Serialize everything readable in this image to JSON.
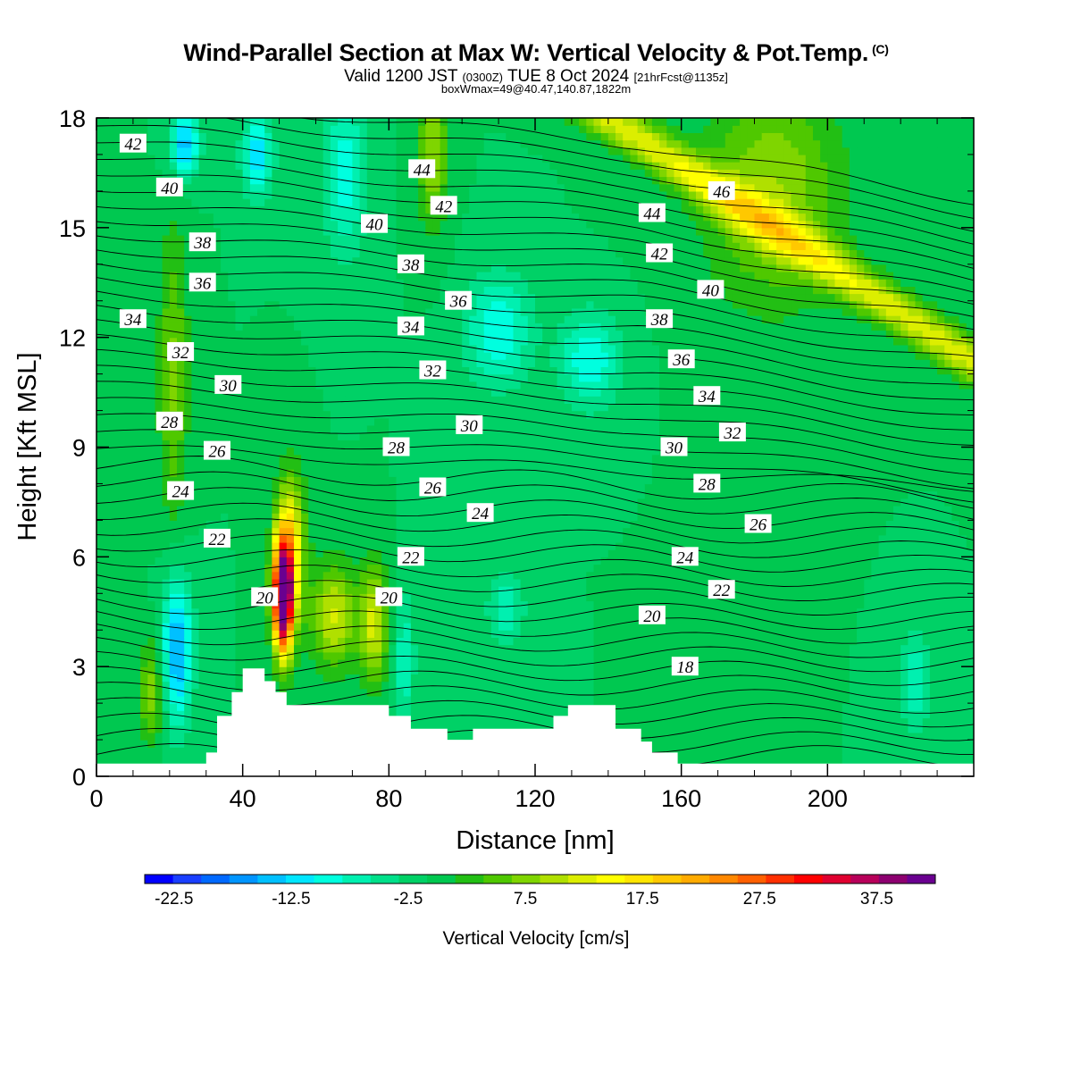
{
  "header": {
    "title": "Wind-Parallel Section at Max W: Vertical Velocity & Pot.Temp.",
    "copyright_mark": "(C)",
    "valid_prefix": "Valid 1200 JST",
    "valid_zulu": "(0300Z)",
    "valid_date": "TUE 8 Oct 2024",
    "forecast_tag": "[21hrFcst@1135z]",
    "box_info": "boxWmax=49@40.47,140.87,1822m"
  },
  "chart_data": {
    "type": "heatmap",
    "xlabel": "Distance [nm]",
    "ylabel": "Height [Kft MSL]",
    "xlim": [
      0,
      240
    ],
    "ylim": [
      0,
      18
    ],
    "x_ticks": [
      0,
      40,
      80,
      120,
      160,
      200
    ],
    "y_ticks": [
      0,
      3,
      6,
      9,
      12,
      15,
      18
    ],
    "colorbar": {
      "label": "Vertical Velocity [cm/s]",
      "tick_labels": [
        "-22.5",
        "-12.5",
        "-2.5",
        "7.5",
        "17.5",
        "27.5",
        "37.5"
      ],
      "tick_values": [
        -22.5,
        -12.5,
        -2.5,
        7.5,
        17.5,
        27.5,
        37.5
      ],
      "min": -25,
      "max": 42.5,
      "step": 2.5,
      "colors": [
        "#0000ff",
        "#1a3fff",
        "#0069ff",
        "#0095ff",
        "#00c0ff",
        "#00e6ff",
        "#00ffdf",
        "#00f0b0",
        "#00e08a",
        "#00d166",
        "#00c850",
        "#22bf14",
        "#4fc800",
        "#7fd500",
        "#b0e000",
        "#dcee00",
        "#ffff00",
        "#ffe500",
        "#ffc800",
        "#ffab00",
        "#ff8800",
        "#ff6000",
        "#ff3000",
        "#ff0000",
        "#e00030",
        "#b8005a",
        "#8d0070",
        "#6a0090"
      ]
    },
    "theta_contour_labels": [
      {
        "text": "42",
        "x": 10,
        "y": 17.3
      },
      {
        "text": "40",
        "x": 20,
        "y": 16.1
      },
      {
        "text": "38",
        "x": 29,
        "y": 14.6
      },
      {
        "text": "36",
        "x": 29,
        "y": 13.5
      },
      {
        "text": "34",
        "x": 10,
        "y": 12.5
      },
      {
        "text": "32",
        "x": 23,
        "y": 11.6
      },
      {
        "text": "30",
        "x": 36,
        "y": 10.7
      },
      {
        "text": "28",
        "x": 20,
        "y": 9.7
      },
      {
        "text": "26",
        "x": 33,
        "y": 8.9
      },
      {
        "text": "24",
        "x": 23,
        "y": 7.8
      },
      {
        "text": "22",
        "x": 33,
        "y": 6.5
      },
      {
        "text": "20",
        "x": 46,
        "y": 4.9
      },
      {
        "text": "44",
        "x": 89,
        "y": 16.6
      },
      {
        "text": "42",
        "x": 95,
        "y": 15.6
      },
      {
        "text": "40",
        "x": 76,
        "y": 15.1
      },
      {
        "text": "38",
        "x": 86,
        "y": 14.0
      },
      {
        "text": "36",
        "x": 99,
        "y": 13.0
      },
      {
        "text": "34",
        "x": 86,
        "y": 12.3
      },
      {
        "text": "32",
        "x": 92,
        "y": 11.1
      },
      {
        "text": "30",
        "x": 102,
        "y": 9.6
      },
      {
        "text": "28",
        "x": 82,
        "y": 9.0
      },
      {
        "text": "26",
        "x": 92,
        "y": 7.9
      },
      {
        "text": "24",
        "x": 105,
        "y": 7.2
      },
      {
        "text": "22",
        "x": 86,
        "y": 6.0
      },
      {
        "text": "20",
        "x": 80,
        "y": 4.9
      },
      {
        "text": "44",
        "x": 152,
        "y": 15.4
      },
      {
        "text": "42",
        "x": 154,
        "y": 14.3
      },
      {
        "text": "40",
        "x": 168,
        "y": 13.3
      },
      {
        "text": "38",
        "x": 154,
        "y": 12.5
      },
      {
        "text": "36",
        "x": 160,
        "y": 11.4
      },
      {
        "text": "34",
        "x": 167,
        "y": 10.4
      },
      {
        "text": "32",
        "x": 174,
        "y": 9.4
      },
      {
        "text": "30",
        "x": 158,
        "y": 9.0
      },
      {
        "text": "28",
        "x": 167,
        "y": 8.0
      },
      {
        "text": "26",
        "x": 181,
        "y": 6.9
      },
      {
        "text": "24",
        "x": 161,
        "y": 6.0
      },
      {
        "text": "22",
        "x": 171,
        "y": 5.1
      },
      {
        "text": "20",
        "x": 152,
        "y": 4.4
      },
      {
        "text": "18",
        "x": 161,
        "y": 3.0
      },
      {
        "text": "46",
        "x": 171,
        "y": 16.0
      }
    ],
    "terrain_kft": [
      [
        0,
        0.35
      ],
      [
        30,
        0.35
      ],
      [
        30,
        0.65
      ],
      [
        33,
        0.65
      ],
      [
        33,
        1.65
      ],
      [
        37,
        1.65
      ],
      [
        37,
        2.3
      ],
      [
        40,
        2.3
      ],
      [
        40,
        2.95
      ],
      [
        46,
        2.95
      ],
      [
        46,
        2.6
      ],
      [
        49,
        2.6
      ],
      [
        49,
        2.3
      ],
      [
        52,
        2.3
      ],
      [
        52,
        1.95
      ],
      [
        80,
        1.95
      ],
      [
        80,
        1.65
      ],
      [
        86,
        1.65
      ],
      [
        86,
        1.3
      ],
      [
        96,
        1.3
      ],
      [
        96,
        1.0
      ],
      [
        103,
        1.0
      ],
      [
        103,
        1.3
      ],
      [
        125,
        1.3
      ],
      [
        125,
        1.65
      ],
      [
        129,
        1.65
      ],
      [
        129,
        1.95
      ],
      [
        142,
        1.95
      ],
      [
        142,
        1.3
      ],
      [
        149,
        1.3
      ],
      [
        149,
        0.95
      ],
      [
        152,
        0.95
      ],
      [
        152,
        0.65
      ],
      [
        159,
        0.65
      ],
      [
        159,
        0.35
      ],
      [
        240,
        0.35
      ]
    ]
  }
}
